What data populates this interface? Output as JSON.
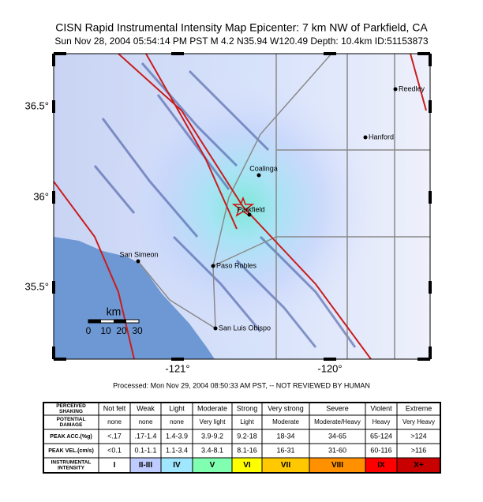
{
  "header": {
    "title": "CISN Rapid Instrumental Intensity Map Epicenter:   7 km NW of Parkfield, CA",
    "subtitle": "Sun Nov 28, 2004 05:54:14 PM PST   M 4.2   N35.94 W120.49   Depth: 10.4km   ID:51153873"
  },
  "map": {
    "lat_labels": [
      "36.5°",
      "36°",
      "35.5°"
    ],
    "lon_labels": [
      "-121°",
      "-120°"
    ],
    "cities": [
      "Reedley",
      "Hanford",
      "Coalinga",
      "Parkfield",
      "San Simeon",
      "Paso Robles",
      "San Luis Obispo"
    ],
    "scale_bar": {
      "unit": "km",
      "labels": [
        "0",
        "10",
        "20",
        "30"
      ]
    }
  },
  "processed": "Processed: Mon Nov 29, 2004 08:50:33 AM PST, -- NOT REVIEWED BY HUMAN",
  "legend_table": {
    "row_headers": [
      [
        "PERCEIVED",
        "SHAKING"
      ],
      [
        "POTENTIAL",
        "DAMAGE"
      ],
      [
        "PEAK ACC.(%g)"
      ],
      [
        "PEAK VEL.(cm/s)"
      ],
      [
        "INSTRUMENTAL",
        "INTENSITY"
      ]
    ],
    "rows": [
      [
        "Not felt",
        "Weak",
        "Light",
        "Moderate",
        "Strong",
        "Very strong",
        "Severe",
        "Violent",
        "Extreme"
      ],
      [
        "none",
        "none",
        "none",
        "Very light",
        "Light",
        "Moderate",
        "Moderate/Heavy",
        "Heavy",
        "Very Heavy"
      ],
      [
        "<.17",
        ".17-1.4",
        "1.4-3.9",
        "3.9-9.2",
        "9.2-18",
        "18-34",
        "34-65",
        "65-124",
        ">124"
      ],
      [
        "<0.1",
        "0.1-1.1",
        "1.1-3.4",
        "3.4-8.1",
        "8.1-16",
        "16-31",
        "31-60",
        "60-116",
        ">116"
      ],
      [
        "I",
        "II-III",
        "IV",
        "V",
        "VI",
        "VII",
        "VIII",
        "IX",
        "X+"
      ]
    ],
    "intensity_colors": [
      "#ffffff",
      "#bfccff",
      "#a0e6ff",
      "#80ffb0",
      "#ffff00",
      "#ffc800",
      "#ff9100",
      "#ff0000",
      "#c80000"
    ]
  }
}
